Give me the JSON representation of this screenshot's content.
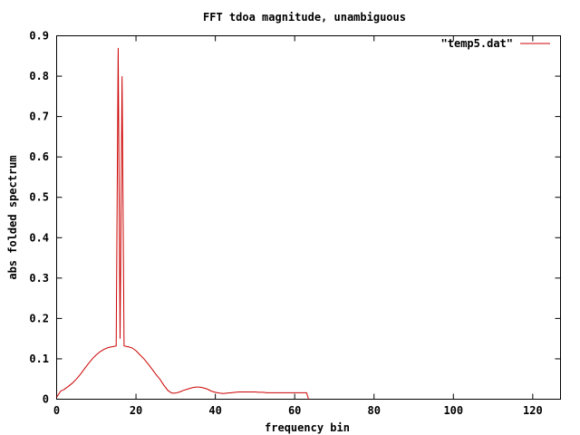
{
  "chart_data": {
    "type": "line",
    "title": "FFT tdoa magnitude, unambiguous",
    "xlabel": "frequency bin",
    "ylabel": "abs folded spectrum",
    "xlim": [
      0,
      127
    ],
    "ylim": [
      0,
      0.9
    ],
    "xticks": [
      "0",
      "20",
      "40",
      "60",
      "80",
      "100",
      "120"
    ],
    "yticks": [
      "0",
      "0.1",
      "0.2",
      "0.3",
      "0.4",
      "0.5",
      "0.6",
      "0.7",
      "0.8",
      "0.9"
    ],
    "xtick_values": [
      0,
      20,
      40,
      60,
      80,
      100,
      120
    ],
    "ytick_values": [
      0,
      0.1,
      0.2,
      0.3,
      0.4,
      0.5,
      0.6,
      0.7,
      0.8,
      0.9
    ],
    "legend_position": "top-right",
    "grid": false,
    "series": [
      {
        "name": "\"temp5.dat\"",
        "color": "#cc0000",
        "x": [
          0,
          1,
          2,
          3,
          4,
          5,
          6,
          7,
          8,
          9,
          10,
          11,
          12,
          13,
          14,
          15,
          15.5,
          16,
          16.5,
          17,
          18,
          19,
          20,
          21,
          22,
          23,
          24,
          25,
          26,
          27,
          28,
          29,
          30,
          31,
          32,
          33,
          34,
          35,
          36,
          37,
          38,
          39,
          40,
          41,
          42,
          43,
          44,
          45,
          46,
          47,
          48,
          49,
          50,
          51,
          52,
          53,
          54,
          55,
          56,
          57,
          58,
          59,
          60,
          61,
          62,
          63,
          63.5
        ],
        "y": [
          0.005,
          0.02,
          0.025,
          0.032,
          0.04,
          0.05,
          0.062,
          0.075,
          0.088,
          0.1,
          0.11,
          0.118,
          0.124,
          0.128,
          0.13,
          0.132,
          0.87,
          0.15,
          0.8,
          0.132,
          0.13,
          0.127,
          0.12,
          0.11,
          0.1,
          0.088,
          0.075,
          0.062,
          0.05,
          0.035,
          0.022,
          0.015,
          0.015,
          0.018,
          0.022,
          0.025,
          0.028,
          0.03,
          0.03,
          0.028,
          0.025,
          0.02,
          0.017,
          0.015,
          0.014,
          0.015,
          0.016,
          0.017,
          0.018,
          0.018,
          0.018,
          0.018,
          0.018,
          0.017,
          0.017,
          0.016,
          0.016,
          0.016,
          0.016,
          0.016,
          0.016,
          0.016,
          0.016,
          0.016,
          0.016,
          0.016,
          0.0
        ]
      }
    ]
  }
}
